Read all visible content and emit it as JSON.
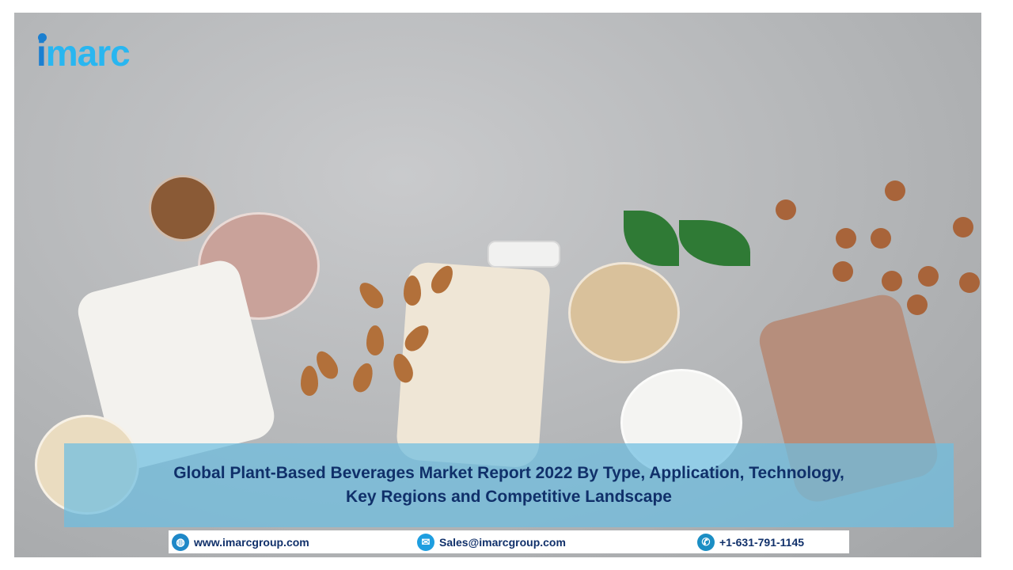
{
  "brand": {
    "logo_text": "imarc",
    "logo_color": "#29b6f0",
    "logo_dot_color": "#1b7fd0"
  },
  "title": {
    "line1": "Global Plant-Based Beverages Market Report 2022 By Type, Application, Technology,",
    "line2": "Key Regions and Competitive Landscape",
    "color": "#10306a"
  },
  "contact": {
    "website": "www.imarcgroup.com",
    "email": "Sales@imarcgroup.com",
    "phone": "+1-631-791-1145",
    "icons": [
      "globe-icon",
      "mail-icon",
      "phone-icon"
    ]
  }
}
